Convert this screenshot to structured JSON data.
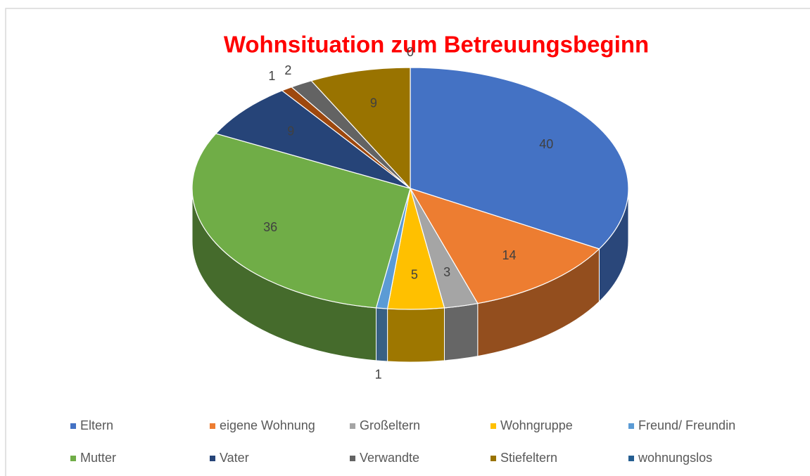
{
  "chart_data": {
    "type": "pie3d",
    "title": "Wohnsituation zum Betreuungsbeginn",
    "categories": [
      "Eltern",
      "eigene Wohnung",
      "Großeltern",
      "Wohngruppe",
      "Freund/ Freundin",
      "Mutter",
      "Vater",
      null,
      "Verwandte",
      "Stiefeltern",
      "wohnungslos"
    ],
    "values": [
      40,
      14,
      3,
      5,
      1,
      36,
      9,
      1,
      2,
      9,
      0
    ],
    "colors": [
      "#4472c4",
      "#ed7d31",
      "#a5a5a5",
      "#ffc000",
      "#5b9bd5",
      "#70ad47",
      "#264478",
      "#9e480e",
      "#636363",
      "#997300",
      "#255e91"
    ],
    "legend": "bottom"
  }
}
